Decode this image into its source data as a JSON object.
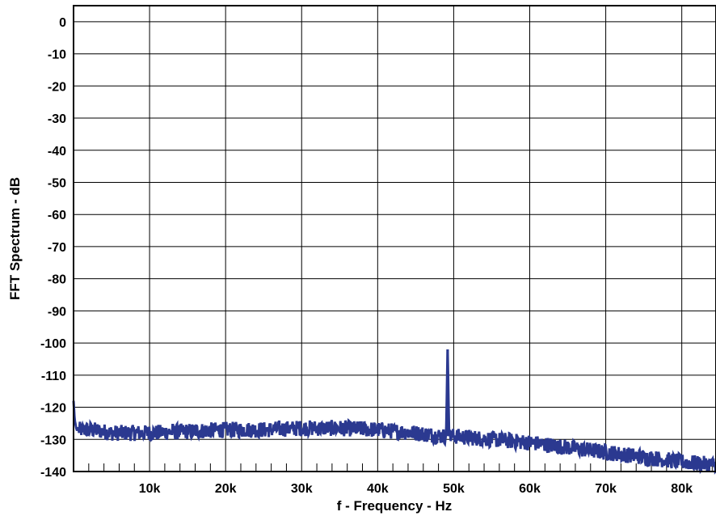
{
  "chart_data": {
    "type": "line",
    "title": "",
    "xlabel": "f - Frequency - Hz",
    "ylabel": "FFT Spectrum - dB",
    "xlim": [
      0,
      84500
    ],
    "ylim": [
      -140,
      5
    ],
    "grid": true,
    "legend": "none",
    "color": "#2b3990",
    "x_ticks": [
      {
        "value": 10000,
        "label": "10k"
      },
      {
        "value": 20000,
        "label": "20k"
      },
      {
        "value": 30000,
        "label": "30k"
      },
      {
        "value": 40000,
        "label": "40k"
      },
      {
        "value": 50000,
        "label": "50k"
      },
      {
        "value": 60000,
        "label": "60k"
      },
      {
        "value": 70000,
        "label": "70k"
      },
      {
        "value": 80000,
        "label": "80k"
      }
    ],
    "y_ticks": [
      {
        "value": 0,
        "label": "0"
      },
      {
        "value": -10,
        "label": "-10"
      },
      {
        "value": -20,
        "label": "-20"
      },
      {
        "value": -30,
        "label": "-30"
      },
      {
        "value": -40,
        "label": "-40"
      },
      {
        "value": -50,
        "label": "-50"
      },
      {
        "value": -60,
        "label": "-60"
      },
      {
        "value": -70,
        "label": "-70"
      },
      {
        "value": -80,
        "label": "-80"
      },
      {
        "value": -90,
        "label": "-90"
      },
      {
        "value": -100,
        "label": "-100"
      },
      {
        "value": -110,
        "label": "-110"
      },
      {
        "value": -120,
        "label": "-120"
      },
      {
        "value": -130,
        "label": "-130"
      },
      {
        "value": -140,
        "label": "-140"
      }
    ],
    "series": [
      {
        "x": [
          0,
          150,
          400,
          1000,
          2500,
          5000,
          7500,
          10000,
          15000,
          20000,
          25000,
          30000,
          35000,
          40000,
          45000,
          48500,
          49000,
          49200,
          49400,
          50000,
          55000,
          60000,
          65000,
          70000,
          75000,
          80000,
          84500
        ],
        "y": [
          -118,
          -124,
          -127,
          -127,
          -127,
          -128,
          -128,
          -128,
          -127.5,
          -127,
          -127,
          -126.5,
          -126.5,
          -127,
          -128,
          -129,
          -129,
          -102,
          -129,
          -129,
          -130,
          -131,
          -132.5,
          -134,
          -135.5,
          -137,
          -138
        ],
        "noise_amplitude_db": 2.5
      }
    ]
  }
}
